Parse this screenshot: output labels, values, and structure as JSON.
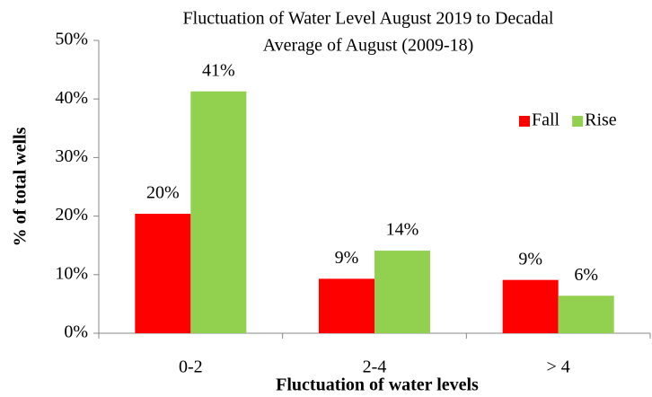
{
  "chart_data": {
    "type": "bar",
    "title": [
      "Fluctuation of Water Level August 2019 to Decadal",
      "Average of August  (2009-18)"
    ],
    "xlabel": "Fluctuation of water levels",
    "ylabel": "% of total wells",
    "categories": [
      "0-2",
      "2-4",
      "> 4"
    ],
    "series": [
      {
        "name": "Fall",
        "color": "#ff0000",
        "values": [
          20.4,
          9.3,
          9.1
        ],
        "value_labels": [
          "20%",
          "9%",
          "9%"
        ]
      },
      {
        "name": "Rise",
        "color": "#92d050",
        "values": [
          41.3,
          14.1,
          6.4
        ],
        "value_labels": [
          "41%",
          "14%",
          "6%"
        ]
      }
    ],
    "ylim": [
      0,
      50
    ],
    "yticks": [
      {
        "value": 0,
        "label": "0%"
      },
      {
        "value": 10,
        "label": "10%"
      },
      {
        "value": 20,
        "label": "20%"
      },
      {
        "value": 30,
        "label": "30%"
      },
      {
        "value": 40,
        "label": "40%"
      },
      {
        "value": 50,
        "label": "50%"
      }
    ],
    "grid": false,
    "legend": "upper right"
  }
}
